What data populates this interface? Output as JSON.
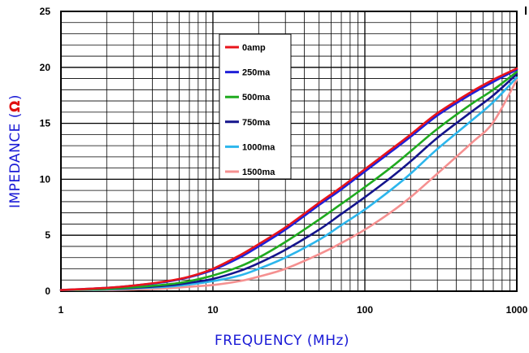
{
  "chart_data": {
    "type": "line",
    "x_scale": "log",
    "xlim": [
      1,
      1000
    ],
    "ylim": [
      0,
      25
    ],
    "xlabel": "FREQUENCY (MHz)",
    "ylabel": "IMPEDANCE (",
    "ylabel_unit": "Ω",
    "ylabel_close": ")",
    "x_ticks": [
      "1",
      "10",
      "100",
      "1000"
    ],
    "y_ticks": [
      "0",
      "5",
      "10",
      "15",
      "20",
      "25"
    ],
    "grid": true,
    "legend_placement": "top-center",
    "series": [
      {
        "name": "0amp",
        "color": "#e8141b",
        "points": [
          [
            1,
            0.1
          ],
          [
            2,
            0.3
          ],
          [
            3,
            0.5
          ],
          [
            5,
            0.9
          ],
          [
            7,
            1.3
          ],
          [
            10,
            2.0
          ],
          [
            15,
            3.2
          ],
          [
            20,
            4.2
          ],
          [
            30,
            5.7
          ],
          [
            50,
            7.9
          ],
          [
            70,
            9.3
          ],
          [
            100,
            10.9
          ],
          [
            150,
            12.7
          ],
          [
            200,
            14.0
          ],
          [
            300,
            15.9
          ],
          [
            500,
            17.8
          ],
          [
            700,
            18.9
          ],
          [
            1000,
            19.9
          ]
        ]
      },
      {
        "name": "250ma",
        "color": "#2020d8",
        "points": [
          [
            1,
            0.1
          ],
          [
            2,
            0.3
          ],
          [
            3,
            0.5
          ],
          [
            5,
            0.85
          ],
          [
            7,
            1.25
          ],
          [
            10,
            1.9
          ],
          [
            15,
            3.0
          ],
          [
            20,
            4.0
          ],
          [
            30,
            5.5
          ],
          [
            50,
            7.7
          ],
          [
            70,
            9.1
          ],
          [
            100,
            10.7
          ],
          [
            150,
            12.5
          ],
          [
            200,
            13.8
          ],
          [
            300,
            15.7
          ],
          [
            500,
            17.6
          ],
          [
            700,
            18.7
          ],
          [
            1000,
            19.8
          ]
        ]
      },
      {
        "name": "500ma",
        "color": "#1faa1f",
        "points": [
          [
            1,
            0.1
          ],
          [
            2,
            0.2
          ],
          [
            3,
            0.35
          ],
          [
            5,
            0.6
          ],
          [
            7,
            0.9
          ],
          [
            10,
            1.4
          ],
          [
            15,
            2.2
          ],
          [
            20,
            3.0
          ],
          [
            30,
            4.4
          ],
          [
            50,
            6.4
          ],
          [
            70,
            7.8
          ],
          [
            100,
            9.3
          ],
          [
            150,
            11.1
          ],
          [
            200,
            12.5
          ],
          [
            300,
            14.5
          ],
          [
            500,
            16.7
          ],
          [
            700,
            18.0
          ],
          [
            1000,
            19.6
          ]
        ]
      },
      {
        "name": "750ma",
        "color": "#14148c",
        "points": [
          [
            1,
            0.1
          ],
          [
            2,
            0.2
          ],
          [
            3,
            0.3
          ],
          [
            5,
            0.5
          ],
          [
            7,
            0.75
          ],
          [
            10,
            1.1
          ],
          [
            15,
            1.8
          ],
          [
            20,
            2.5
          ],
          [
            30,
            3.7
          ],
          [
            50,
            5.5
          ],
          [
            70,
            6.9
          ],
          [
            100,
            8.4
          ],
          [
            150,
            10.2
          ],
          [
            200,
            11.6
          ],
          [
            300,
            13.7
          ],
          [
            500,
            16.0
          ],
          [
            700,
            17.5
          ],
          [
            1000,
            19.4
          ]
        ]
      },
      {
        "name": "1000ma",
        "color": "#2cb6ec",
        "points": [
          [
            1,
            0.1
          ],
          [
            2,
            0.15
          ],
          [
            3,
            0.25
          ],
          [
            5,
            0.4
          ],
          [
            7,
            0.6
          ],
          [
            10,
            0.9
          ],
          [
            15,
            1.4
          ],
          [
            20,
            2.0
          ],
          [
            30,
            3.0
          ],
          [
            50,
            4.6
          ],
          [
            70,
            5.9
          ],
          [
            100,
            7.3
          ],
          [
            150,
            9.1
          ],
          [
            200,
            10.5
          ],
          [
            300,
            12.7
          ],
          [
            500,
            15.2
          ],
          [
            700,
            16.9
          ],
          [
            1000,
            19.1
          ]
        ]
      },
      {
        "name": "1500ma",
        "color": "#f59090",
        "points": [
          [
            1,
            0.1
          ],
          [
            2,
            0.1
          ],
          [
            3,
            0.15
          ],
          [
            5,
            0.25
          ],
          [
            7,
            0.4
          ],
          [
            10,
            0.55
          ],
          [
            15,
            0.9
          ],
          [
            20,
            1.3
          ],
          [
            30,
            2.0
          ],
          [
            50,
            3.3
          ],
          [
            70,
            4.3
          ],
          [
            100,
            5.5
          ],
          [
            150,
            7.1
          ],
          [
            200,
            8.4
          ],
          [
            300,
            10.5
          ],
          [
            500,
            13.2
          ],
          [
            700,
            15.1
          ],
          [
            1000,
            18.9
          ]
        ]
      }
    ]
  }
}
